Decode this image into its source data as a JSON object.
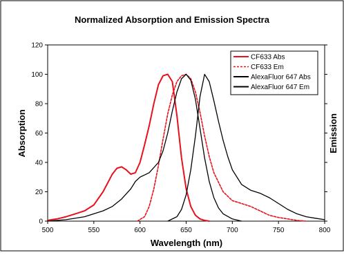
{
  "chart_data": {
    "type": "line",
    "title": "Normalized Absorption and Emission Spectra",
    "xlabel": "Wavelength (nm)",
    "ylabel": "Absorption",
    "y2label": "Emission",
    "xlim": [
      500,
      800
    ],
    "ylim": [
      0,
      120
    ],
    "x_ticks": [
      500,
      550,
      600,
      650,
      700,
      750,
      800
    ],
    "y_ticks": [
      0,
      20,
      40,
      60,
      80,
      100,
      120
    ],
    "grid": false,
    "legend_position": "top-right",
    "series": [
      {
        "name": "CF633 Abs",
        "color": "#e8101c",
        "dash": "solid",
        "x": [
          500,
          510,
          520,
          530,
          540,
          550,
          560,
          570,
          575,
          580,
          585,
          590,
          595,
          600,
          605,
          610,
          615,
          620,
          625,
          630,
          635,
          640,
          645,
          650,
          655,
          660,
          665,
          670,
          675
        ],
        "y": [
          0.5,
          1.5,
          3,
          5,
          7,
          11,
          20,
          32,
          36,
          37,
          35,
          32,
          33,
          40,
          52,
          65,
          80,
          93,
          99,
          100,
          95,
          72,
          43,
          22,
          10,
          4,
          1.5,
          0.5,
          0
        ]
      },
      {
        "name": "CF633 Em",
        "color": "#e8101c",
        "dash": "dashed",
        "x": [
          597,
          605,
          610,
          615,
          620,
          625,
          630,
          635,
          640,
          645,
          650,
          655,
          660,
          665,
          670,
          675,
          680,
          690,
          700,
          710,
          720,
          730,
          740,
          750,
          760,
          770,
          780
        ],
        "y": [
          0,
          3,
          10,
          22,
          38,
          56,
          73,
          86,
          95,
          99,
          100,
          97,
          88,
          74,
          58,
          44,
          33,
          20,
          14,
          12,
          10,
          7,
          4,
          2.5,
          1.5,
          0.5,
          0
        ]
      },
      {
        "name": "AlexaFluor 647 Abs",
        "color": "#000000",
        "dash": "solid",
        "x": [
          500,
          520,
          540,
          550,
          560,
          570,
          580,
          590,
          595,
          600,
          610,
          620,
          625,
          630,
          635,
          640,
          645,
          650,
          655,
          660,
          665,
          670,
          675,
          680,
          685,
          690,
          700,
          710
        ],
        "y": [
          0,
          1,
          3,
          5,
          7,
          10,
          15,
          22,
          27,
          30,
          33,
          40,
          48,
          60,
          75,
          88,
          97,
          100,
          96,
          83,
          63,
          43,
          27,
          16,
          9,
          5,
          1.5,
          0
        ]
      },
      {
        "name": "AlexaFluor 647 Em",
        "color": "#000000",
        "dash": "solid",
        "x": [
          630,
          640,
          645,
          650,
          655,
          660,
          665,
          670,
          675,
          680,
          685,
          690,
          695,
          700,
          710,
          720,
          730,
          740,
          750,
          760,
          770,
          780,
          790,
          800
        ],
        "y": [
          0,
          3,
          8,
          18,
          35,
          58,
          85,
          100,
          95,
          82,
          68,
          55,
          44,
          35,
          25,
          21,
          19,
          16,
          12,
          8,
          5,
          3,
          2,
          1
        ]
      }
    ]
  }
}
